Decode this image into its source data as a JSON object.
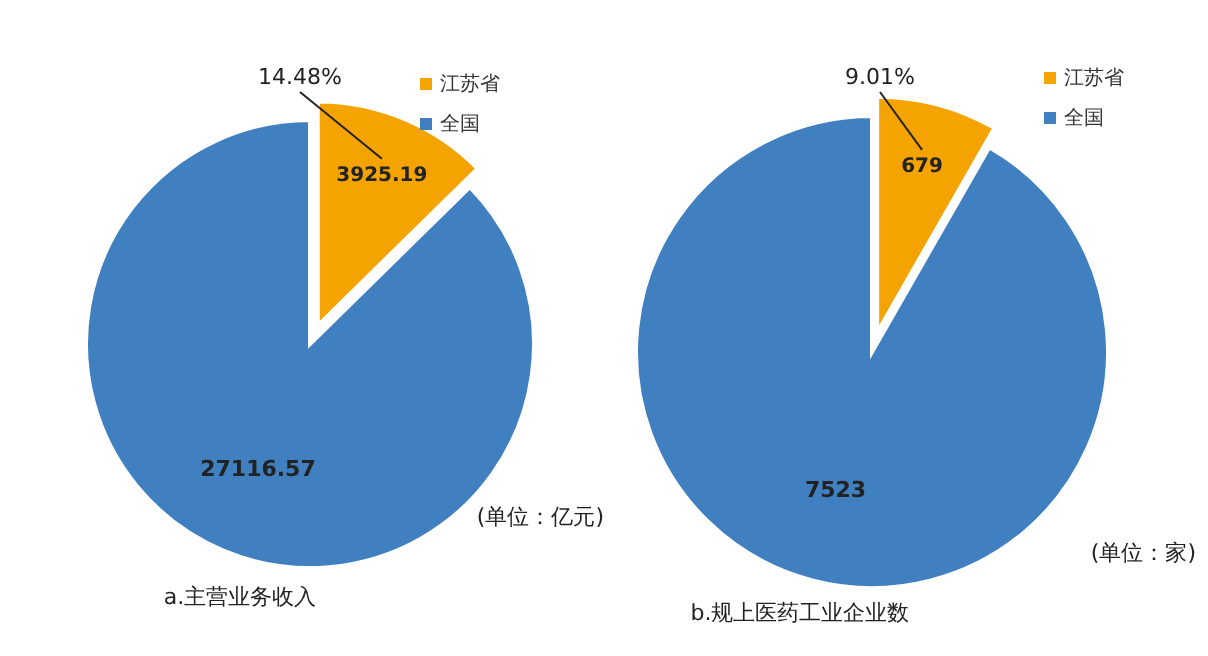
{
  "chart_data": [
    {
      "type": "pie",
      "title": "a.主营业务收入",
      "categories": [
        "江苏省",
        "全国"
      ],
      "values": [
        3925.19,
        27116.57
      ],
      "colors": [
        "#f5a300",
        "#4080c0"
      ],
      "data_labels": true,
      "legend": "top right",
      "annotations": [
        "14.48%",
        "(单位：亿元)"
      ]
    },
    {
      "type": "pie",
      "title": "b.规上医药工业企业数",
      "categories": [
        "江苏省",
        "全国"
      ],
      "values": [
        679,
        7523
      ],
      "colors": [
        "#f5a300",
        "#4080c0"
      ],
      "data_labels": true,
      "legend": "top right",
      "annotations": [
        "9.01%",
        "(单位：家)"
      ]
    }
  ]
}
